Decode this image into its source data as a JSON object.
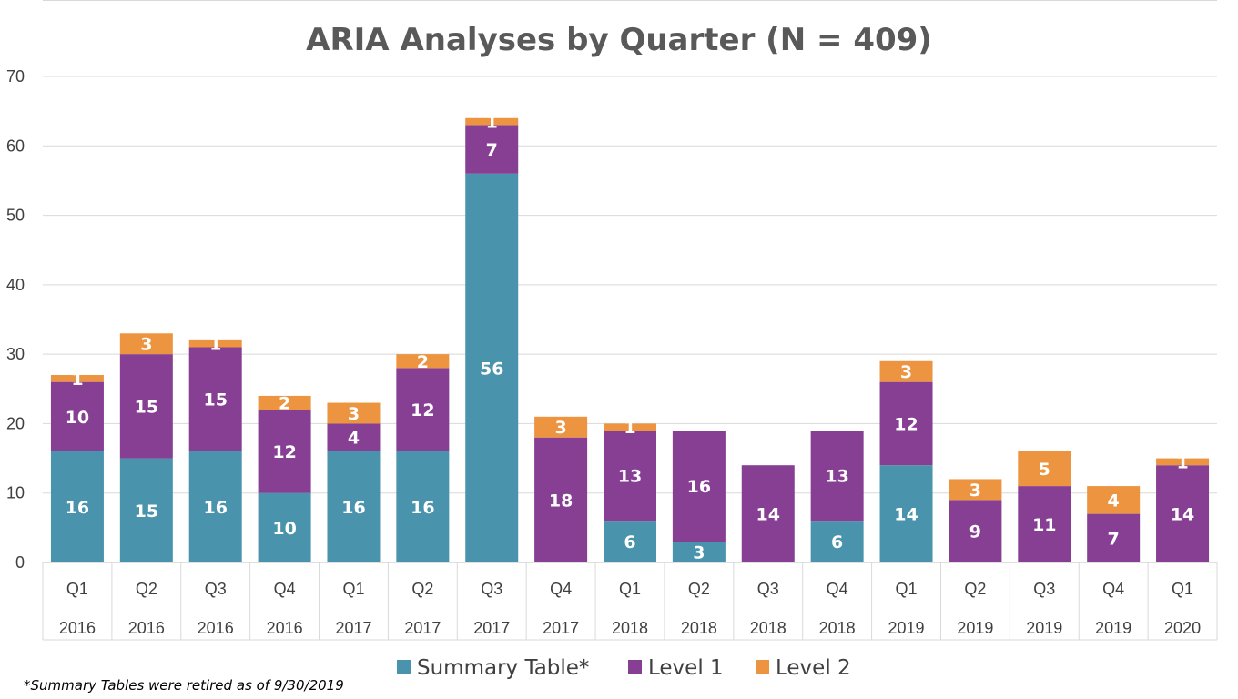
{
  "chart_data": {
    "type": "bar",
    "stacked": true,
    "title": "ARIA Analyses by Quarter (N = 409)",
    "categories": [
      {
        "quarter": "Q1",
        "year": "2016"
      },
      {
        "quarter": "Q2",
        "year": "2016"
      },
      {
        "quarter": "Q3",
        "year": "2016"
      },
      {
        "quarter": "Q4",
        "year": "2016"
      },
      {
        "quarter": "Q1",
        "year": "2017"
      },
      {
        "quarter": "Q2",
        "year": "2017"
      },
      {
        "quarter": "Q3",
        "year": "2017"
      },
      {
        "quarter": "Q4",
        "year": "2017"
      },
      {
        "quarter": "Q1",
        "year": "2018"
      },
      {
        "quarter": "Q2",
        "year": "2018"
      },
      {
        "quarter": "Q3",
        "year": "2018"
      },
      {
        "quarter": "Q4",
        "year": "2018"
      },
      {
        "quarter": "Q1",
        "year": "2019"
      },
      {
        "quarter": "Q2",
        "year": "2019"
      },
      {
        "quarter": "Q3",
        "year": "2019"
      },
      {
        "quarter": "Q4",
        "year": "2019"
      },
      {
        "quarter": "Q1",
        "year": "2020"
      }
    ],
    "series": [
      {
        "name": "Summary Table*",
        "color": "#4a93ad",
        "values": [
          16,
          15,
          16,
          10,
          16,
          16,
          56,
          0,
          6,
          3,
          0,
          6,
          14,
          0,
          0,
          0,
          0
        ]
      },
      {
        "name": "Level 1",
        "color": "#873f94",
        "values": [
          10,
          15,
          15,
          12,
          4,
          12,
          7,
          18,
          13,
          16,
          14,
          13,
          12,
          9,
          11,
          7,
          14
        ]
      },
      {
        "name": "Level 2",
        "color": "#ec9440",
        "values": [
          1,
          3,
          1,
          2,
          3,
          2,
          1,
          3,
          1,
          0,
          0,
          0,
          3,
          3,
          5,
          4,
          1
        ]
      }
    ],
    "ylim": [
      0,
      70
    ],
    "yticks": [
      0,
      10,
      20,
      30,
      40,
      50,
      60,
      70
    ],
    "grid": true,
    "legend_position": "bottom",
    "footnote": "*Summary Tables were retired as of 9/30/2019"
  }
}
